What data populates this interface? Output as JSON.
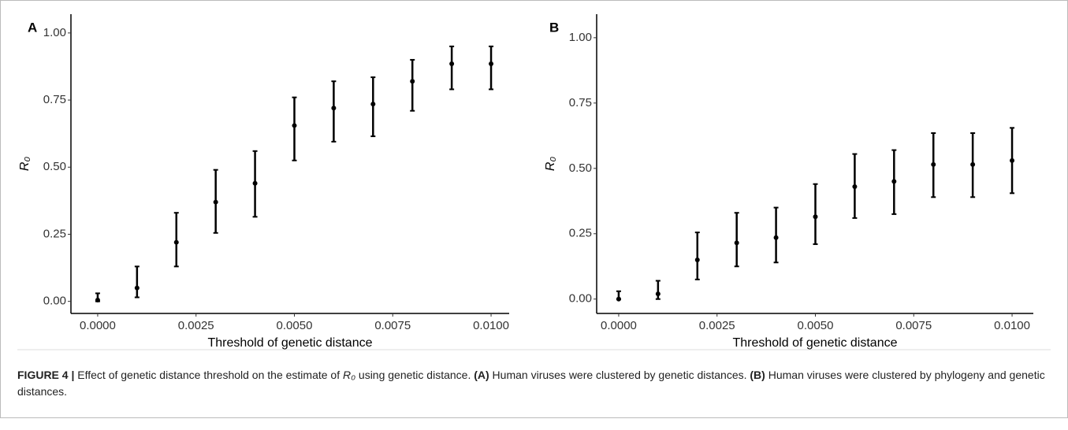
{
  "chart_data": [
    {
      "type": "scatter",
      "title": "A",
      "xlabel": "Threshold of genetic distance",
      "ylabel": "R₀",
      "color": "#000000",
      "x": [
        0,
        0.001,
        0.002,
        0.003,
        0.004,
        0.005,
        0.006,
        0.007,
        0.008,
        0.009,
        0.01
      ],
      "values": [
        0.005,
        0.05,
        0.22,
        0.37,
        0.44,
        0.655,
        0.72,
        0.735,
        0.82,
        0.885,
        0.885
      ],
      "lower": [
        0,
        0.015,
        0.13,
        0.255,
        0.315,
        0.525,
        0.595,
        0.615,
        0.71,
        0.79,
        0.79
      ],
      "upper": [
        0.03,
        0.13,
        0.33,
        0.49,
        0.56,
        0.76,
        0.82,
        0.835,
        0.9,
        0.95,
        0.95
      ],
      "xlim": [
        -0.00068,
        0.01046
      ],
      "ylim": [
        -0.045,
        1.07
      ],
      "xticks": [
        {
          "value": 0,
          "label": "0.0000"
        },
        {
          "value": 0.0025,
          "label": "0.0025"
        },
        {
          "value": 0.005,
          "label": "0.0050"
        },
        {
          "value": 0.0075,
          "label": "0.0075"
        },
        {
          "value": 0.01,
          "label": "0.0100"
        }
      ],
      "yticks": [
        {
          "value": 0,
          "label": "0.00"
        },
        {
          "value": 0.25,
          "label": "0.25"
        },
        {
          "value": 0.5,
          "label": "0.50"
        },
        {
          "value": 0.75,
          "label": "0.75"
        },
        {
          "value": 1,
          "label": "1.00"
        }
      ]
    },
    {
      "type": "scatter",
      "title": "B",
      "xlabel": "Threshold of genetic distance",
      "ylabel": "R₀",
      "color": "#000000",
      "x": [
        0,
        0.001,
        0.002,
        0.003,
        0.004,
        0.005,
        0.006,
        0.007,
        0.008,
        0.009,
        0.01
      ],
      "values": [
        0,
        0.02,
        0.15,
        0.215,
        0.235,
        0.315,
        0.43,
        0.45,
        0.515,
        0.515,
        0.53
      ],
      "lower": [
        0,
        0,
        0.075,
        0.125,
        0.14,
        0.21,
        0.31,
        0.325,
        0.39,
        0.39,
        0.405
      ],
      "upper": [
        0.03,
        0.07,
        0.255,
        0.33,
        0.35,
        0.44,
        0.555,
        0.57,
        0.635,
        0.635,
        0.655
      ],
      "xlim": [
        -0.00056,
        0.01054
      ],
      "ylim": [
        -0.055,
        1.09
      ],
      "xticks": [
        {
          "value": 0,
          "label": "0.0000"
        },
        {
          "value": 0.0025,
          "label": "0.0025"
        },
        {
          "value": 0.005,
          "label": "0.0050"
        },
        {
          "value": 0.0075,
          "label": "0.0075"
        },
        {
          "value": 0.01,
          "label": "0.0100"
        }
      ],
      "yticks": [
        {
          "value": 0,
          "label": "0.00"
        },
        {
          "value": 0.25,
          "label": "0.25"
        },
        {
          "value": 0.5,
          "label": "0.50"
        },
        {
          "value": 0.75,
          "label": "0.75"
        },
        {
          "value": 1,
          "label": "1.00"
        }
      ]
    }
  ],
  "caption": {
    "label": "FIGURE 4 |",
    "parts": [
      "Effect of genetic distance threshold on the estimate of ",
      "R₀",
      " using genetic distance. ",
      "(A)",
      " Human viruses were clustered by genetic distances. ",
      "(B)",
      " Human viruses were clustered by phylogeny and genetic distances."
    ]
  }
}
